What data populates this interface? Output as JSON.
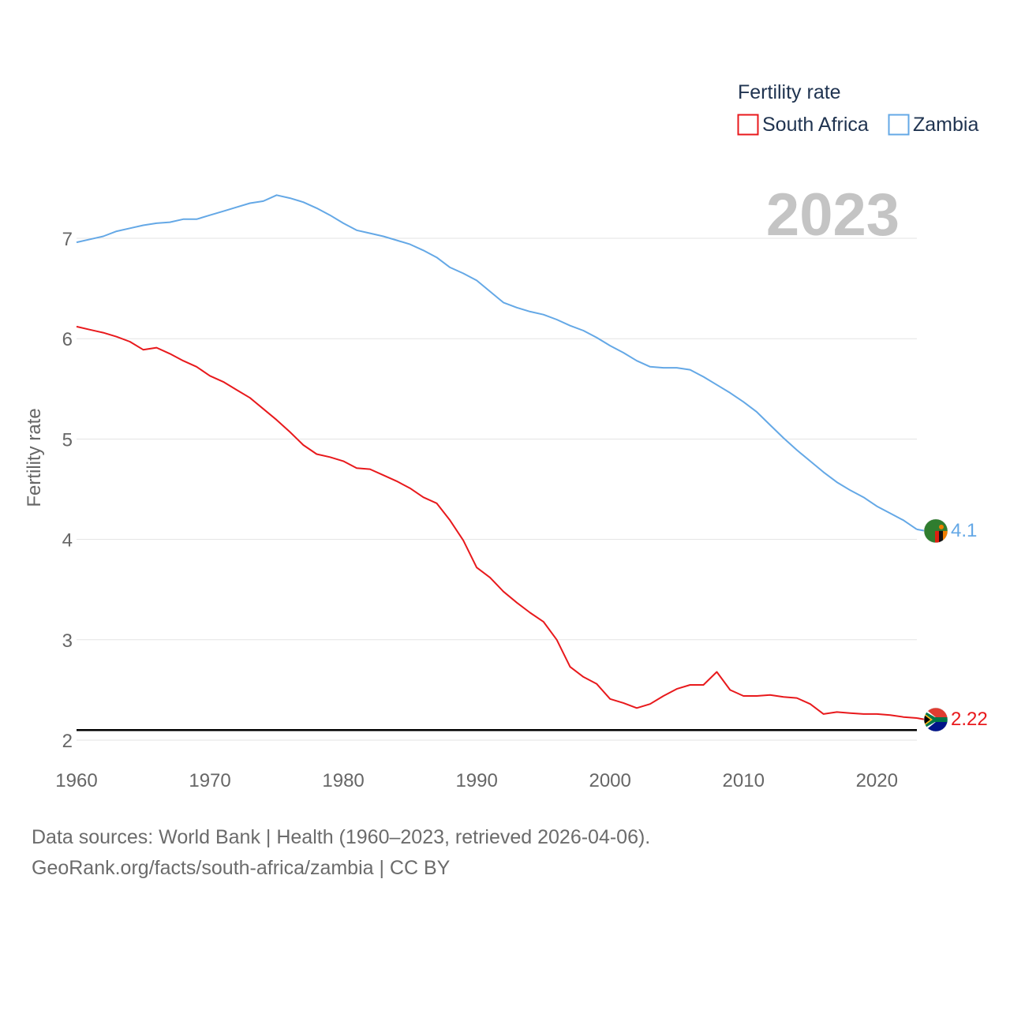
{
  "chart_data": {
    "type": "line",
    "title": "",
    "xlabel": "",
    "ylabel": "Fertility rate",
    "year_label": "2023",
    "legend_title": "Fertility rate",
    "xlim": [
      1960,
      2023
    ],
    "ylim": [
      2,
      7.3
    ],
    "yticks": [
      2,
      3,
      4,
      5,
      6,
      7
    ],
    "xticks": [
      1960,
      1970,
      1980,
      1990,
      2000,
      2010,
      2020
    ],
    "reference_line": 2.1,
    "x": [
      1960,
      1961,
      1962,
      1963,
      1964,
      1965,
      1966,
      1967,
      1968,
      1969,
      1970,
      1971,
      1972,
      1973,
      1974,
      1975,
      1976,
      1977,
      1978,
      1979,
      1980,
      1981,
      1982,
      1983,
      1984,
      1985,
      1986,
      1987,
      1988,
      1989,
      1990,
      1991,
      1992,
      1993,
      1994,
      1995,
      1996,
      1997,
      1998,
      1999,
      2000,
      2001,
      2002,
      2003,
      2004,
      2005,
      2006,
      2007,
      2008,
      2009,
      2010,
      2011,
      2012,
      2013,
      2014,
      2015,
      2016,
      2017,
      2018,
      2019,
      2020,
      2021,
      2022,
      2023
    ],
    "series": [
      {
        "name": "South Africa",
        "color": "#e8191c",
        "end_label": "2.22",
        "values": [
          6.12,
          6.09,
          6.06,
          6.02,
          5.97,
          5.89,
          5.91,
          5.85,
          5.78,
          5.72,
          5.63,
          5.57,
          5.49,
          5.41,
          5.3,
          5.19,
          5.07,
          4.94,
          4.85,
          4.82,
          4.78,
          4.71,
          4.7,
          4.64,
          4.58,
          4.51,
          4.42,
          4.36,
          4.19,
          3.99,
          3.72,
          3.62,
          3.48,
          3.37,
          3.27,
          3.18,
          3.0,
          2.73,
          2.63,
          2.56,
          2.41,
          2.37,
          2.32,
          2.36,
          2.44,
          2.51,
          2.55,
          2.55,
          2.68,
          2.5,
          2.44,
          2.44,
          2.45,
          2.43,
          2.42,
          2.36,
          2.26,
          2.28,
          2.27,
          2.26,
          2.26,
          2.25,
          2.23,
          2.22
        ]
      },
      {
        "name": "Zambia",
        "color": "#64a8e6",
        "end_label": "4.1",
        "values": [
          6.96,
          6.99,
          7.02,
          7.07,
          7.1,
          7.13,
          7.15,
          7.16,
          7.19,
          7.19,
          7.23,
          7.27,
          7.31,
          7.35,
          7.37,
          7.43,
          7.4,
          7.36,
          7.3,
          7.23,
          7.15,
          7.08,
          7.05,
          7.02,
          6.98,
          6.94,
          6.88,
          6.81,
          6.71,
          6.65,
          6.58,
          6.47,
          6.36,
          6.31,
          6.27,
          6.24,
          6.19,
          6.13,
          6.08,
          6.01,
          5.93,
          5.86,
          5.78,
          5.72,
          5.71,
          5.71,
          5.69,
          5.62,
          5.54,
          5.46,
          5.37,
          5.27,
          5.14,
          5.01,
          4.89,
          4.78,
          4.67,
          4.57,
          4.49,
          4.42,
          4.33,
          4.26,
          4.19,
          4.1
        ]
      }
    ]
  },
  "footer": {
    "line1": "Data sources: World Bank | Health (1960–2023, retrieved 2026-04-06).",
    "line2": "GeoRank.org/facts/south-africa/zambia | CC BY"
  }
}
